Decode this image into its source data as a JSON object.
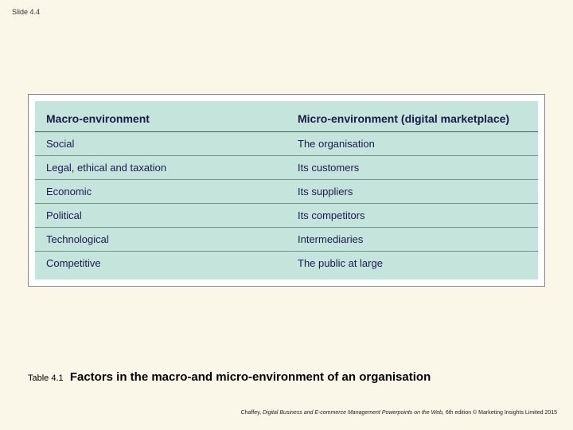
{
  "slideNumber": "Slide 4.4",
  "table": {
    "headerBg": "#c5e5dc",
    "columns": [
      "Macro-environment",
      "Micro-environment (digital marketplace)"
    ],
    "rows": [
      [
        "Social",
        "The organisation"
      ],
      [
        "Legal, ethical and taxation",
        "Its customers"
      ],
      [
        "Economic",
        "Its suppliers"
      ],
      [
        "Political",
        "Its competitors"
      ],
      [
        "Technological",
        "Intermediaries"
      ],
      [
        "Competitive",
        "The public at large"
      ]
    ]
  },
  "caption": {
    "prefix": "Table 4.1",
    "title": "Factors in the macro-and micro-environment of an organisation"
  },
  "footer": {
    "author": "Chaffey,",
    "bookTitle": "Digital Business and E-commerce Management Powerpoints on the Web,",
    "edition": "6th edition © Marketing Insights Limited 2015"
  }
}
